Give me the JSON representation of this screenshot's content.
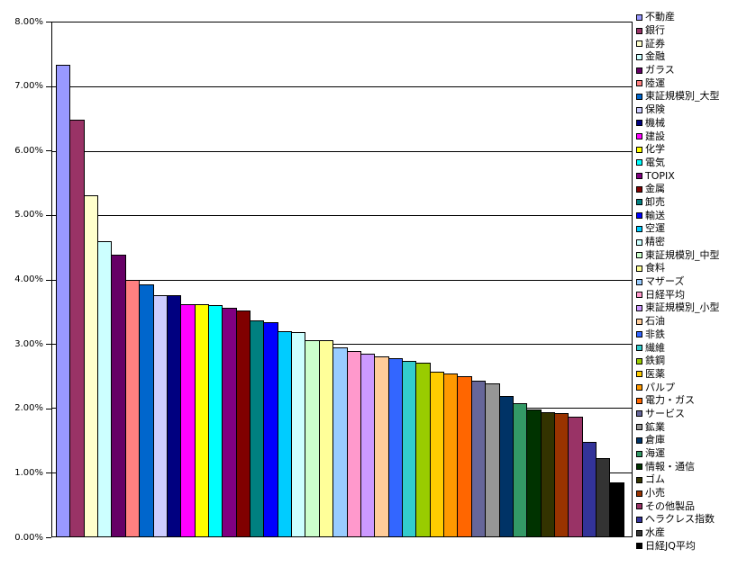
{
  "chart_data": {
    "type": "bar",
    "title": "",
    "xlabel": "",
    "ylabel": "",
    "ylim": [
      0,
      8
    ],
    "ytick_step": 1,
    "ytick_labels": [
      "8.00%",
      "7.00%",
      "6.00%",
      "5.00%",
      "4.00%",
      "3.00%",
      "2.00%",
      "1.00%",
      "0.00%"
    ],
    "grid": true,
    "legend_position": "right",
    "unit": "%",
    "categories": [
      "不動産",
      "銀行",
      "証券",
      "金融",
      "ガラス",
      "陸運",
      "東証規模別_大型",
      "保険",
      "機械",
      "建設",
      "化学",
      "電気",
      "TOPIX",
      "金属",
      "卸売",
      "輸送",
      "空運",
      "精密",
      "東証規模別_中型",
      "食料",
      "マザーズ",
      "日経平均",
      "東証規模別_小型",
      "石油",
      "非鉄",
      "繊維",
      "鉄鋼",
      "医薬",
      "パルプ",
      "電力・ガス",
      "サービス",
      "鉱業",
      "倉庫",
      "海運",
      "情報・通信",
      "ゴム",
      "小売",
      "その他製品",
      "ヘラクレス指数",
      "水産",
      "日経JQ平均"
    ],
    "values": [
      7.34,
      6.49,
      5.31,
      4.6,
      4.39,
      3.99,
      3.92,
      3.76,
      3.75,
      3.62,
      3.61,
      3.6,
      3.56,
      3.51,
      3.36,
      3.33,
      3.2,
      3.18,
      3.06,
      3.05,
      2.94,
      2.88,
      2.85,
      2.8,
      2.78,
      2.73,
      2.71,
      2.57,
      2.53,
      2.49,
      2.43,
      2.38,
      2.18,
      2.08,
      1.97,
      1.93,
      1.92,
      1.87,
      1.47,
      1.22,
      0.84
    ],
    "colors": [
      "#9999FF",
      "#993366",
      "#FFFFCC",
      "#CCFFFF",
      "#660066",
      "#FF8080",
      "#0066CC",
      "#CCCCFF",
      "#000080",
      "#FF00FF",
      "#FFFF00",
      "#00FFFF",
      "#800080",
      "#800000",
      "#008080",
      "#0000FF",
      "#00CCFF",
      "#CCFFFF",
      "#CCFFCC",
      "#FFFF99",
      "#99CCFF",
      "#FF99CC",
      "#CC99FF",
      "#FFCC99",
      "#3366FF",
      "#33CCCC",
      "#99CC00",
      "#FFCC00",
      "#FF9900",
      "#FF6600",
      "#666699",
      "#969696",
      "#003366",
      "#339966",
      "#003300",
      "#333300",
      "#993300",
      "#993366",
      "#333399",
      "#333333",
      "#000000"
    ]
  },
  "style": {
    "background": "#FFFFFF",
    "axis_color": "#000000",
    "gridline_color": "#000000",
    "bar_outline_color": "#000000"
  }
}
